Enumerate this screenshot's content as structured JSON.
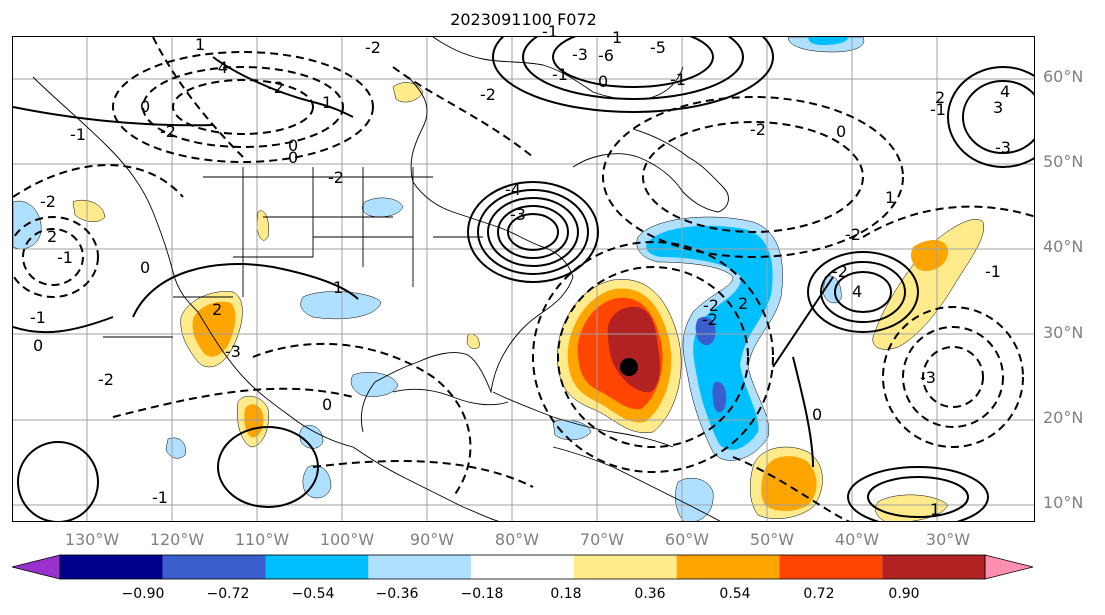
{
  "title": "2023091100 F072",
  "lat_labels": [
    "60°N",
    "50°N",
    "40°N",
    "30°N",
    "20°N",
    "10°N"
  ],
  "lon_labels": [
    "130°W",
    "120°W",
    "110°W",
    "100°W",
    "90°W",
    "80°W",
    "70°W",
    "60°W",
    "50°W",
    "40°W",
    "30°W"
  ],
  "colorbar": {
    "ticks": [
      "−0.90",
      "−0.72",
      "−0.54",
      "−0.36",
      "−0.18",
      "0.18",
      "0.36",
      "0.54",
      "0.72",
      "0.90"
    ],
    "colors": [
      "#9932cc",
      "#00008b",
      "#3a5fcd",
      "#00bfff",
      "#b0e0ff",
      "#ffffff",
      "#ffeb8c",
      "#ffa500",
      "#ff4500",
      "#b22222",
      "#ff8fb0"
    ]
  },
  "contour_labels": [
    "-2",
    "1",
    "-4",
    "-2",
    "0",
    "1",
    "-2",
    "-1",
    "-2",
    "2",
    "-1",
    "0",
    "-1",
    "0",
    "0",
    "-2",
    "1",
    "0",
    "0",
    "2",
    "-2",
    "-3",
    "-1",
    "-2",
    "-4",
    "-3",
    "0",
    "-1",
    "-1",
    "1",
    "-2",
    "-2",
    "2",
    "0",
    "-2",
    "-2",
    "4",
    "-3",
    "0",
    "1",
    "-1",
    "-3",
    "3",
    "-1",
    "4",
    "2",
    "1",
    "-5",
    "-3",
    "-6",
    "-1",
    "-2"
  ],
  "storm_marker": "hurricane-center"
}
